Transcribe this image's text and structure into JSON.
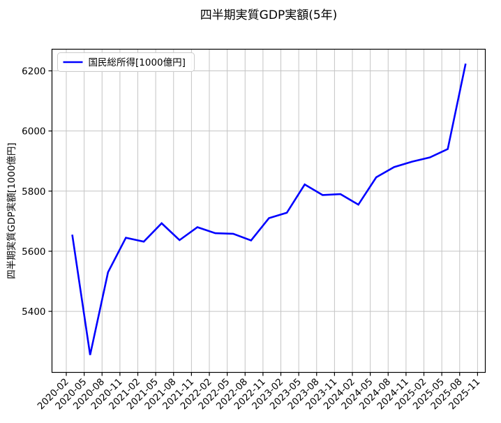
{
  "chart_data": {
    "type": "line",
    "title": "四半期実質GDP実額(5年)",
    "ylabel": "四半期実質GDP実額[1000億円]",
    "xlabel": "",
    "grid": true,
    "legend": {
      "position": "upper left",
      "entries": [
        {
          "label": "国民総所得[1000億円]",
          "color": "#0000ff"
        }
      ]
    },
    "x_tick_labels": [
      "2020-02",
      "2020-05",
      "2020-08",
      "2020-11",
      "2021-02",
      "2021-05",
      "2021-08",
      "2021-11",
      "2022-02",
      "2022-05",
      "2022-08",
      "2022-11",
      "2023-02",
      "2023-05",
      "2023-08",
      "2023-11",
      "2024-02",
      "2024-05",
      "2024-08",
      "2024-11",
      "2025-02",
      "2025-05",
      "2025-08",
      "2025-11"
    ],
    "x_tick_months": [
      0,
      3,
      6,
      9,
      12,
      15,
      18,
      21,
      24,
      27,
      30,
      33,
      36,
      39,
      42,
      45,
      48,
      51,
      54,
      57,
      60,
      63,
      66,
      69
    ],
    "y_ticks": [
      5400,
      5600,
      5800,
      6000,
      6200
    ],
    "ylim": [
      5197,
      6272
    ],
    "xlim_months": [
      -2.4,
      70.3
    ],
    "series": [
      {
        "name": "国民総所得[1000億円]",
        "color": "#0000ff",
        "x": [
          "2020-03",
          "2020-06",
          "2020-09",
          "2020-12",
          "2021-03",
          "2021-06",
          "2021-09",
          "2021-12",
          "2022-03",
          "2022-06",
          "2022-09",
          "2022-12",
          "2023-03",
          "2023-06",
          "2023-09",
          "2023-12",
          "2024-03",
          "2024-06",
          "2024-09",
          "2024-12",
          "2025-03",
          "2025-06",
          "2025-09"
        ],
        "x_months": [
          1,
          4,
          7,
          10,
          13,
          16,
          19,
          22,
          25,
          28,
          31,
          34,
          37,
          40,
          43,
          46,
          49,
          52,
          55,
          58,
          61,
          64,
          67
        ],
        "values": [
          5655,
          5255,
          5530,
          5645,
          5632,
          5693,
          5637,
          5680,
          5660,
          5658,
          5636,
          5710,
          5728,
          5822,
          5787,
          5790,
          5755,
          5846,
          5880,
          5898,
          5912,
          5940,
          6224
        ]
      }
    ],
    "colors": {
      "line": "#0000ff",
      "grid": "#c4c4c4",
      "spine": "#000000",
      "legend_border": "#cccccc",
      "background": "#ffffff"
    }
  }
}
